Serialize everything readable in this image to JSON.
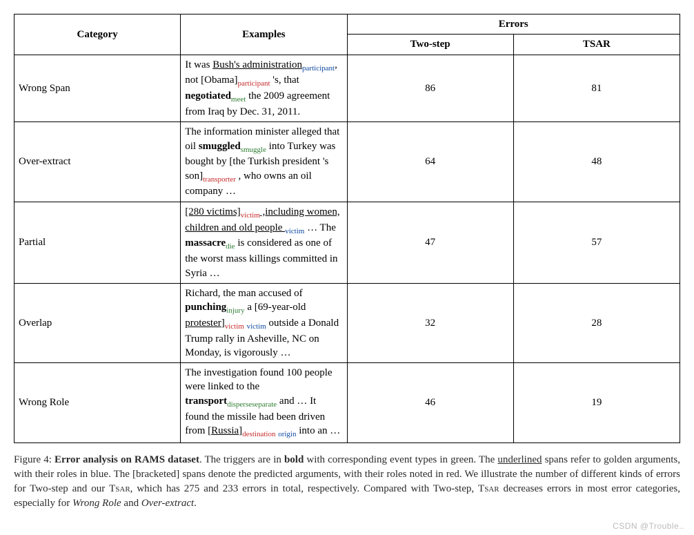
{
  "table": {
    "header": {
      "category": "Category",
      "examples": "Examples",
      "errors": "Errors",
      "twostep": "Two-step",
      "tsar": "TSAR"
    },
    "col_widths": {
      "category": 100,
      "num": 70
    },
    "rows": [
      {
        "category": "Wrong Span",
        "twostep": "86",
        "tsar": "81",
        "ex": [
          {
            "t": "It was "
          },
          {
            "t": "Bush's administration",
            "u": true
          },
          {
            "t": "participant",
            "sub": true,
            "color": "blue"
          },
          {
            "t": ", not [Obama]"
          },
          {
            "t": "participant",
            "sub": true,
            "color": "red"
          },
          {
            "t": " 's, that "
          },
          {
            "t": "negotiated",
            "b": true
          },
          {
            "t": "meet",
            "sub": true,
            "color": "green"
          },
          {
            "t": " the 2009 agreement from Iraq by Dec. 31, 2011."
          }
        ]
      },
      {
        "category": "Over-extract",
        "twostep": "64",
        "tsar": "48",
        "ex": [
          {
            "t": "The information minister alleged that oil "
          },
          {
            "t": "smuggled",
            "b": true
          },
          {
            "t": "smuggle",
            "sub": true,
            "color": "green"
          },
          {
            "t": " into Turkey was bought by [the Turkish president 's son]"
          },
          {
            "t": "transporter",
            "sub": true,
            "color": "red"
          },
          {
            "t": " , who owns an oil company …"
          }
        ]
      },
      {
        "category": "Partial",
        "twostep": "47",
        "tsar": "57",
        "ex": [
          {
            "t": "[280 victims]",
            "u": true
          },
          {
            "t": "victim",
            "sub": true,
            "color": "red"
          },
          {
            "t": " ,including women, children and old people ",
            "u": true
          },
          {
            "t": "victim",
            "sub": true,
            "color": "blue"
          },
          {
            "t": " … The "
          },
          {
            "t": "massacre",
            "b": true
          },
          {
            "t": "die",
            "sub": true,
            "color": "green"
          },
          {
            "t": " is considered as one of the worst mass killings committed in Syria …"
          }
        ]
      },
      {
        "category": "Overlap",
        "twostep": "32",
        "tsar": "28",
        "ex": [
          {
            "t": "Richard, the man accused of "
          },
          {
            "t": "punching",
            "b": true
          },
          {
            "t": "injury",
            "sub": true,
            "color": "green"
          },
          {
            "t": " a [69-year-old "
          },
          {
            "t": "protester",
            "u": true
          },
          {
            "t": "]"
          },
          {
            "t": "victim",
            "sub": true,
            "color": "red"
          },
          {
            "t": " "
          },
          {
            "t": "victim",
            "sub": true,
            "color": "blue"
          },
          {
            "t": " outside a Donald Trump rally in Asheville, NC on Monday, is vigorously …"
          }
        ]
      },
      {
        "category": "Wrong Role",
        "twostep": "46",
        "tsar": "19",
        "ex": [
          {
            "t": "The investigation found 100 people were linked to the "
          },
          {
            "t": "transport",
            "b": true
          },
          {
            "t": "disperseseparate",
            "sub": true,
            "color": "green"
          },
          {
            "t": " and … It found the missile had been driven from ["
          },
          {
            "t": "Russia",
            "u": true
          },
          {
            "t": "]"
          },
          {
            "t": "destination",
            "sub": true,
            "color": "red"
          },
          {
            "t": " "
          },
          {
            "t": "origin",
            "sub": true,
            "color": "blue"
          },
          {
            "t": " into an …"
          }
        ]
      }
    ]
  },
  "caption": {
    "label": "Figure 4: ",
    "title": "Error analysis on RAMS dataset",
    "parts": [
      {
        "t": ". The triggers are in "
      },
      {
        "t": "bold",
        "b": true
      },
      {
        "t": " with corresponding event types in green. The "
      },
      {
        "t": "underlined",
        "u": true
      },
      {
        "t": " spans refer to golden arguments, with their roles in blue. The [bracketed] spans denote the predicted arguments, with their roles noted in red. We illustrate the number of different kinds of errors for Two-step and our "
      },
      {
        "t": "Tsar",
        "sc": true
      },
      {
        "t": ", which has 275 and 233 errors in total, respectively. Compared with Two-step, "
      },
      {
        "t": "Tsar",
        "sc": true
      },
      {
        "t": " decreases errors in most error categories, especially for "
      },
      {
        "t": "Wrong Role",
        "it": true
      },
      {
        "t": " and "
      },
      {
        "t": "Over-extract",
        "it": true
      },
      {
        "t": "."
      }
    ]
  },
  "watermark": "CSDN @Trouble.."
}
